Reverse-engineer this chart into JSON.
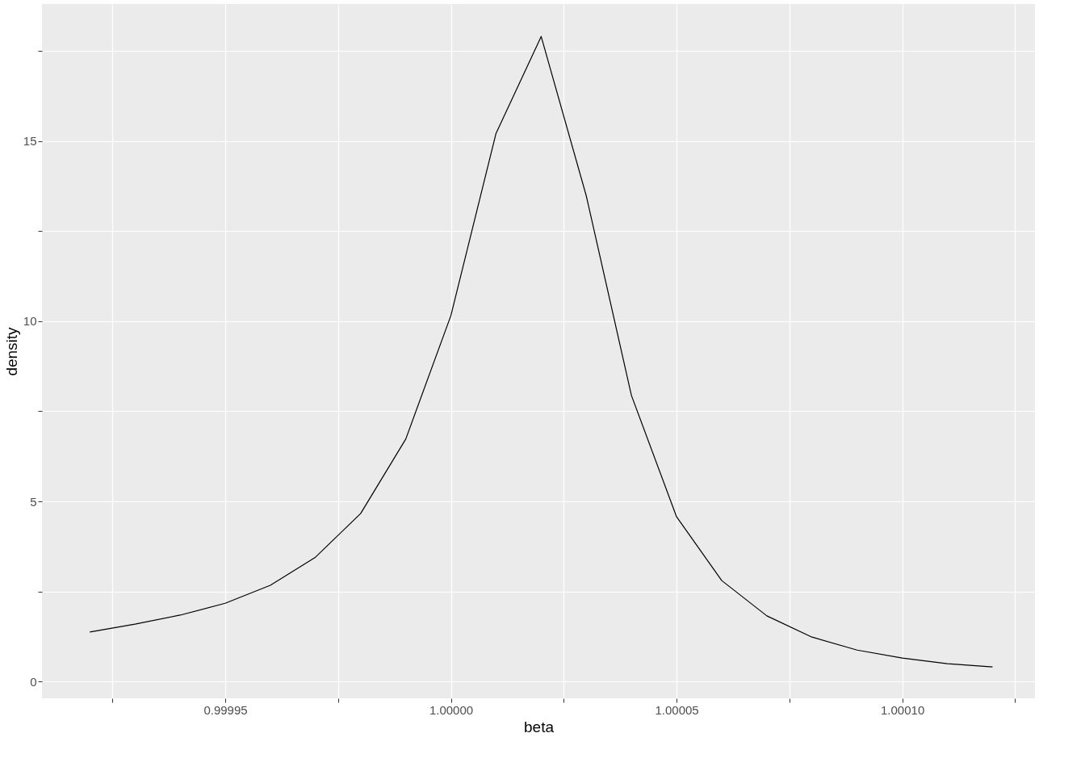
{
  "chart_data": {
    "type": "line",
    "xlabel": "beta",
    "ylabel": "density",
    "x": [
      0.99992,
      0.99993,
      0.99994,
      0.99995,
      0.99996,
      0.99997,
      0.99998,
      0.99999,
      1.0,
      1.00001,
      1.00002,
      1.00003,
      1.00004,
      1.00005,
      1.00006,
      1.00007,
      1.00008,
      1.00009,
      1.0001,
      1.00011,
      1.00012
    ],
    "series": [
      {
        "color": "#000000",
        "values": [
          1.37,
          1.59,
          1.84,
          2.17,
          2.67,
          3.45,
          4.66,
          6.73,
          10.16,
          15.22,
          17.91,
          13.48,
          7.94,
          4.57,
          2.8,
          1.82,
          1.23,
          0.87,
          0.65,
          0.49,
          0.4
        ]
      }
    ],
    "xlim": [
      0.9999094,
      1.0001294
    ],
    "ylim": [
      -0.47,
      18.81
    ],
    "xticks": [
      {
        "value": 0.999925,
        "label": null
      },
      {
        "value": 0.99995,
        "label": "0.99995"
      },
      {
        "value": 0.999975,
        "label": null
      },
      {
        "value": 1.0,
        "label": "1.00000"
      },
      {
        "value": 1.000025,
        "label": null
      },
      {
        "value": 1.00005,
        "label": "1.00005"
      },
      {
        "value": 1.000075,
        "label": null
      },
      {
        "value": 1.0001,
        "label": "1.00010"
      },
      {
        "value": 1.000125,
        "label": null
      }
    ],
    "yticks": [
      0,
      {
        "value": 2.5,
        "label": null
      },
      5,
      {
        "value": 7.5,
        "label": null
      },
      10,
      {
        "value": 12.5,
        "label": null
      },
      15,
      {
        "value": 17.5,
        "label": null
      }
    ],
    "grid": true,
    "marker": "none",
    "line_style": "solid"
  }
}
